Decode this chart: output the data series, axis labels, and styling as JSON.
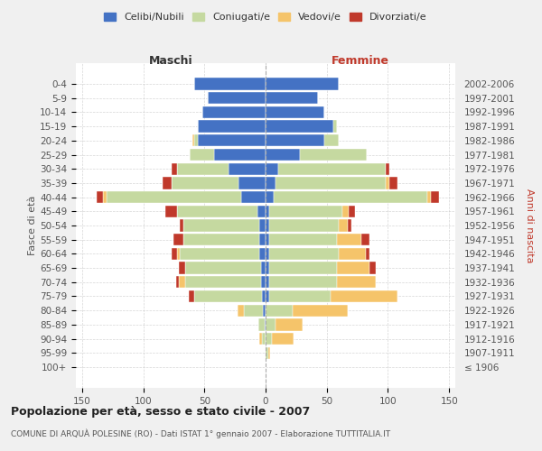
{
  "age_groups": [
    "100+",
    "95-99",
    "90-94",
    "85-89",
    "80-84",
    "75-79",
    "70-74",
    "65-69",
    "60-64",
    "55-59",
    "50-54",
    "45-49",
    "40-44",
    "35-39",
    "30-34",
    "25-29",
    "20-24",
    "15-19",
    "10-14",
    "5-9",
    "0-4"
  ],
  "birth_years": [
    "≤ 1906",
    "1907-1911",
    "1912-1916",
    "1917-1921",
    "1922-1926",
    "1927-1931",
    "1932-1936",
    "1937-1941",
    "1942-1946",
    "1947-1951",
    "1952-1956",
    "1957-1961",
    "1962-1966",
    "1967-1971",
    "1972-1976",
    "1977-1981",
    "1982-1986",
    "1987-1991",
    "1992-1996",
    "1997-2001",
    "2002-2006"
  ],
  "males": {
    "celibi": [
      0,
      0,
      0,
      1,
      2,
      3,
      4,
      4,
      5,
      5,
      5,
      7,
      20,
      22,
      30,
      42,
      55,
      55,
      52,
      47,
      58
    ],
    "coniugati": [
      0,
      0,
      3,
      5,
      16,
      55,
      62,
      62,
      65,
      62,
      62,
      65,
      110,
      55,
      42,
      20,
      3,
      0,
      0,
      0,
      0
    ],
    "vedovi": [
      0,
      0,
      2,
      0,
      5,
      0,
      5,
      0,
      2,
      0,
      0,
      0,
      3,
      0,
      0,
      0,
      2,
      0,
      0,
      0,
      0
    ],
    "divorziati": [
      0,
      0,
      0,
      0,
      0,
      5,
      2,
      5,
      5,
      8,
      3,
      10,
      5,
      7,
      5,
      0,
      0,
      0,
      0,
      0,
      0
    ]
  },
  "females": {
    "nubili": [
      0,
      0,
      0,
      0,
      0,
      3,
      3,
      3,
      3,
      3,
      3,
      3,
      7,
      8,
      10,
      28,
      48,
      55,
      48,
      43,
      60
    ],
    "coniugate": [
      0,
      2,
      5,
      8,
      22,
      50,
      55,
      55,
      57,
      55,
      57,
      60,
      125,
      90,
      88,
      55,
      12,
      3,
      0,
      0,
      0
    ],
    "vedove": [
      0,
      2,
      18,
      22,
      45,
      55,
      32,
      27,
      22,
      20,
      7,
      5,
      3,
      3,
      0,
      0,
      0,
      0,
      0,
      0,
      0
    ],
    "divorziate": [
      0,
      0,
      0,
      0,
      0,
      0,
      0,
      5,
      3,
      7,
      3,
      5,
      7,
      7,
      3,
      0,
      0,
      0,
      0,
      0,
      0
    ]
  },
  "colors": {
    "celibi": "#4472C4",
    "coniugati": "#c5d9a0",
    "vedovi": "#f5c46a",
    "divorziati": "#c0392b"
  },
  "xlim": 155,
  "title": "Popolazione per età, sesso e stato civile - 2007",
  "subtitle": "COMUNE DI ARQUÀ POLESINE (RO) - Dati ISTAT 1° gennaio 2007 - Elaborazione TUTTITALIA.IT",
  "ylabel_left": "Fasce di età",
  "ylabel_right": "Anni di nascita",
  "xlabel_left": "Maschi",
  "xlabel_right": "Femmine",
  "bg_color": "#f0f0f0",
  "plot_bg": "#ffffff",
  "grid_color": "#cccccc"
}
